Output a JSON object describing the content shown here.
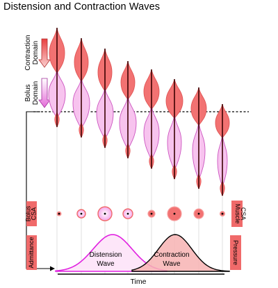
{
  "title": "Distension and Contraction Waves",
  "labels": {
    "contraction_domain": [
      "Contraction",
      "Domain"
    ],
    "bolus_domain": [
      "Bolus",
      "Domain"
    ],
    "bolus_csa": [
      "Bolus",
      "CSA"
    ],
    "muscle_csa": [
      "Muscle",
      "CSA"
    ],
    "admittance": "Admittance",
    "pressure": "Pressure",
    "distension_wave": [
      "Distension",
      "Wave"
    ],
    "contraction_wave": [
      "Contraction",
      "Wave"
    ],
    "time": "Time"
  },
  "colors": {
    "contraction_fill": "#f27272",
    "contraction_stroke": "#e05555",
    "bolus_fill": "#f7c3ee",
    "bolus_stroke": "#cc55c0",
    "label_box": "#f06a6a",
    "distension_curve": "#e020e0",
    "distension_fill": "#fde6f9",
    "contraction_curve": "#000000",
    "contraction_wave_fill": "#f7b3b3",
    "core_line": "#3a0000"
  },
  "icons": [
    "down-arrow-red-icon",
    "down-arrow-pink-icon",
    "right-arrow-icon"
  ]
}
